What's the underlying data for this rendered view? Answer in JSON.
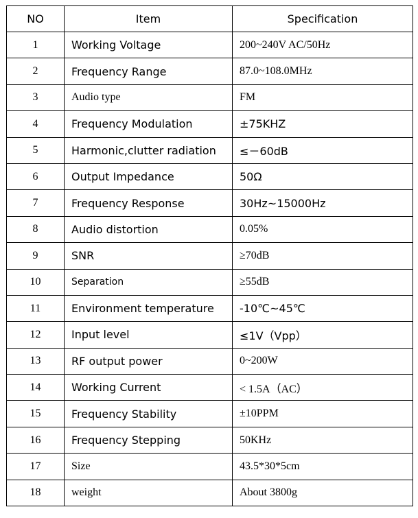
{
  "table": {
    "headers": {
      "no": "NO",
      "item": "Item",
      "spec": "Specification"
    },
    "rows": [
      {
        "no": "1",
        "item": "Working Voltage",
        "spec": "200~240V AC/50Hz"
      },
      {
        "no": "2",
        "item": "Frequency Range",
        "spec": "87.0~108.0MHz"
      },
      {
        "no": "3",
        "item": "Audio type",
        "spec": "FM"
      },
      {
        "no": "4",
        "item": "Frequency Modulation",
        "spec": "±75KHZ"
      },
      {
        "no": "5",
        "item": "Harmonic,clutter radiation",
        "spec": "≤－60dB"
      },
      {
        "no": "6",
        "item": "Output Impedance",
        "spec": "50Ω"
      },
      {
        "no": "7",
        "item": "Frequency Response",
        "spec": "30Hz~15000Hz"
      },
      {
        "no": "8",
        "item": "Audio distortion",
        "spec": "0.05%"
      },
      {
        "no": "9",
        "item": "SNR",
        "spec": "≥70dB"
      },
      {
        "no": "10",
        "item": "Separation",
        "spec": "≥55dB"
      },
      {
        "no": "11",
        "item": "Environment temperature",
        "spec": "-10℃~45℃"
      },
      {
        "no": "12",
        "item": "Input level",
        "spec": "≤1V（Vpp）"
      },
      {
        "no": "13",
        "item": "RF output power",
        "spec": "0~200W"
      },
      {
        "no": "14",
        "item": "Working Current",
        "spec": "< 1.5A（AC）"
      },
      {
        "no": "15",
        "item": "Frequency Stability",
        "spec": "±10PPM"
      },
      {
        "no": "16",
        "item": "Frequency Stepping",
        "spec": "50KHz"
      },
      {
        "no": "17",
        "item": "Size",
        "spec": "43.5*30*5cm"
      },
      {
        "no": "18",
        "item": "weight",
        "spec": "About 3800g"
      }
    ]
  }
}
